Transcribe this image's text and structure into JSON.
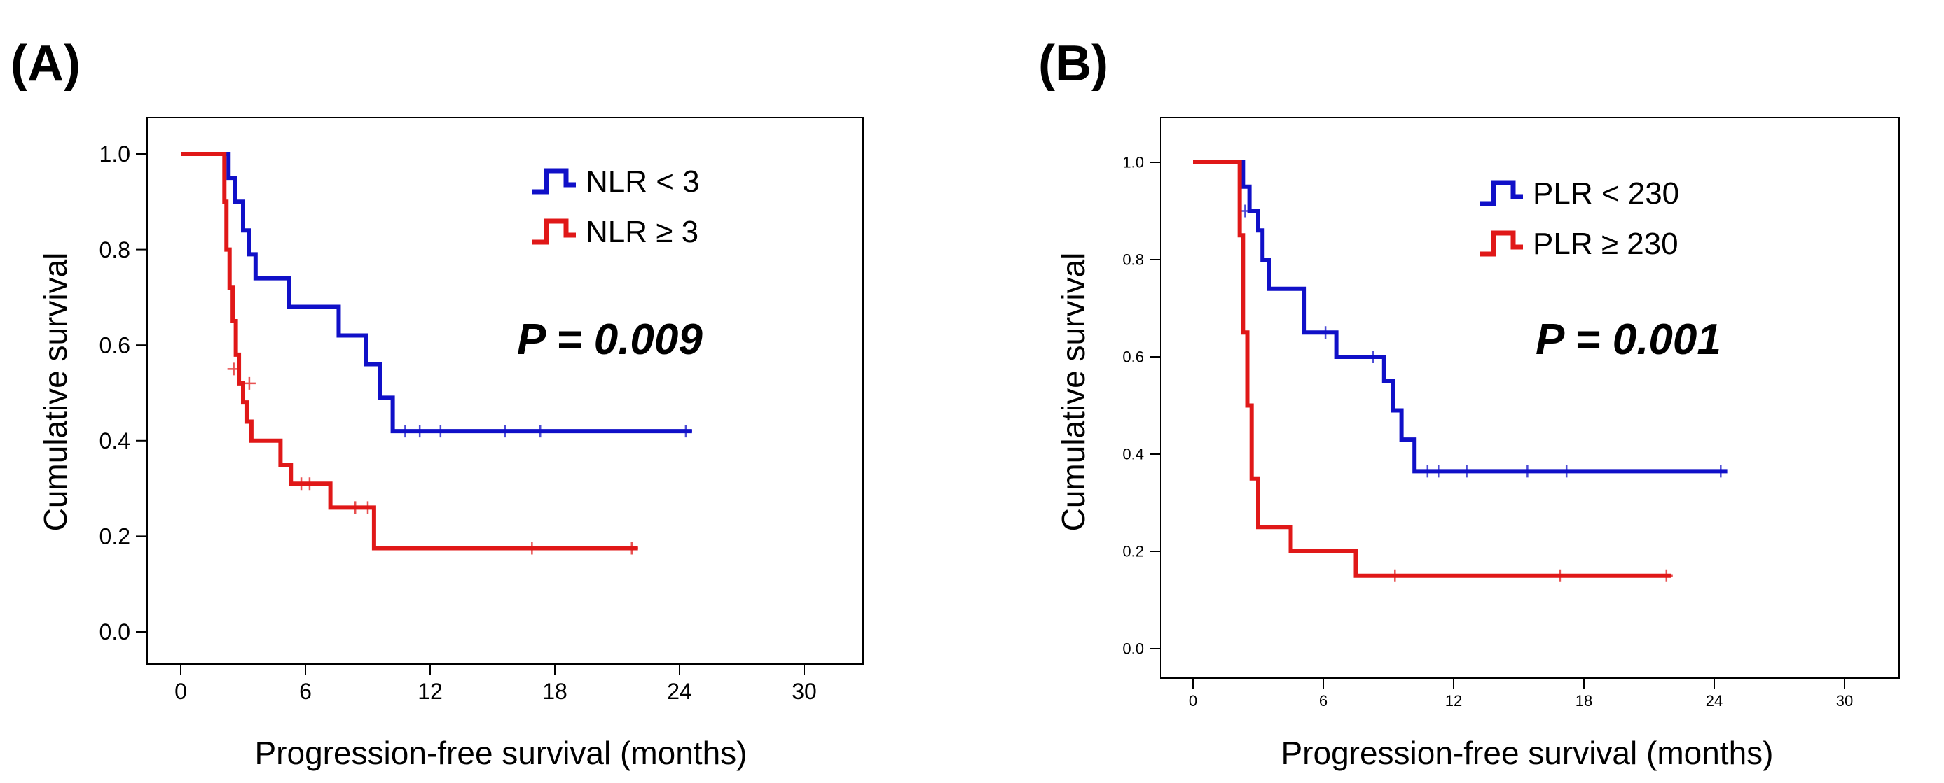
{
  "chart_data": [
    {
      "panel_label": "(A)",
      "type": "line",
      "step": true,
      "xlabel": "Progression-free survival (months)",
      "ylabel": "Cumulative survival",
      "xlim": [
        0,
        30
      ],
      "ylim": [
        0,
        1
      ],
      "xticks": [
        "0",
        "6",
        "12",
        "18",
        "24",
        "30"
      ],
      "yticks": [
        "0.0",
        "0.2",
        "0.4",
        "0.6",
        "0.8",
        "1.0"
      ],
      "annotation": "P = 0.009",
      "legend_position": "top-right",
      "series": [
        {
          "name": "NLR < 3",
          "color": "#1010c8",
          "steps": [
            [
              0,
              1.0
            ],
            [
              2.0,
              1.0
            ],
            [
              2.3,
              0.95
            ],
            [
              2.6,
              0.9
            ],
            [
              3.0,
              0.84
            ],
            [
              3.3,
              0.79
            ],
            [
              3.6,
              0.74
            ],
            [
              5.2,
              0.68
            ],
            [
              7.6,
              0.62
            ],
            [
              8.9,
              0.56
            ],
            [
              9.6,
              0.49
            ],
            [
              10.2,
              0.42
            ],
            [
              24.6,
              0.42
            ]
          ],
          "censored": [
            [
              10.8,
              0.42
            ],
            [
              11.5,
              0.42
            ],
            [
              12.5,
              0.42
            ],
            [
              15.6,
              0.42
            ],
            [
              17.3,
              0.42
            ],
            [
              24.3,
              0.42
            ]
          ]
        },
        {
          "name": "NLR ≥ 3",
          "color": "#e01818",
          "steps": [
            [
              0,
              1.0
            ],
            [
              2.0,
              1.0
            ],
            [
              2.1,
              0.9
            ],
            [
              2.2,
              0.8
            ],
            [
              2.35,
              0.72
            ],
            [
              2.5,
              0.65
            ],
            [
              2.65,
              0.58
            ],
            [
              2.8,
              0.52
            ],
            [
              3.0,
              0.48
            ],
            [
              3.2,
              0.44
            ],
            [
              3.4,
              0.4
            ],
            [
              4.8,
              0.35
            ],
            [
              5.3,
              0.31
            ],
            [
              7.2,
              0.26
            ],
            [
              9.3,
              0.175
            ],
            [
              22.0,
              0.175
            ]
          ],
          "censored": [
            [
              2.55,
              0.55
            ],
            [
              3.3,
              0.52
            ],
            [
              5.8,
              0.31
            ],
            [
              6.2,
              0.31
            ],
            [
              8.4,
              0.26
            ],
            [
              9.0,
              0.26
            ],
            [
              16.9,
              0.175
            ],
            [
              21.7,
              0.175
            ]
          ]
        }
      ]
    },
    {
      "panel_label": "(B)",
      "type": "line",
      "step": true,
      "xlabel": "Progression-free survival (months)",
      "ylabel": "Cumulative survival",
      "xlim": [
        0,
        30
      ],
      "ylim": [
        0,
        1
      ],
      "xticks": [
        "0",
        "6",
        "12",
        "18",
        "24",
        "30"
      ],
      "yticks": [
        "0.0",
        "0.2",
        "0.4",
        "0.6",
        "0.8",
        "1.0"
      ],
      "annotation": "P = 0.001",
      "legend_position": "top-right",
      "series": [
        {
          "name": "PLR < 230",
          "color": "#1010c8",
          "steps": [
            [
              0,
              1.0
            ],
            [
              2.0,
              1.0
            ],
            [
              2.3,
              0.95
            ],
            [
              2.6,
              0.9
            ],
            [
              3.0,
              0.86
            ],
            [
              3.2,
              0.8
            ],
            [
              3.5,
              0.74
            ],
            [
              5.1,
              0.65
            ],
            [
              6.6,
              0.6
            ],
            [
              8.8,
              0.55
            ],
            [
              9.2,
              0.49
            ],
            [
              9.6,
              0.43
            ],
            [
              10.2,
              0.365
            ],
            [
              24.6,
              0.365
            ]
          ],
          "censored": [
            [
              2.4,
              0.9
            ],
            [
              6.1,
              0.65
            ],
            [
              8.3,
              0.6
            ],
            [
              10.8,
              0.365
            ],
            [
              11.3,
              0.365
            ],
            [
              12.6,
              0.365
            ],
            [
              15.4,
              0.365
            ],
            [
              17.2,
              0.365
            ],
            [
              24.3,
              0.365
            ]
          ]
        },
        {
          "name": "PLR ≥ 230",
          "color": "#e01818",
          "steps": [
            [
              0,
              1.0
            ],
            [
              2.0,
              1.0
            ],
            [
              2.15,
              0.85
            ],
            [
              2.3,
              0.65
            ],
            [
              2.5,
              0.5
            ],
            [
              2.7,
              0.35
            ],
            [
              3.0,
              0.25
            ],
            [
              4.5,
              0.2
            ],
            [
              7.5,
              0.15
            ],
            [
              22.0,
              0.15
            ]
          ],
          "censored": [
            [
              9.3,
              0.15
            ],
            [
              16.9,
              0.15
            ],
            [
              21.8,
              0.15
            ]
          ]
        }
      ]
    }
  ]
}
